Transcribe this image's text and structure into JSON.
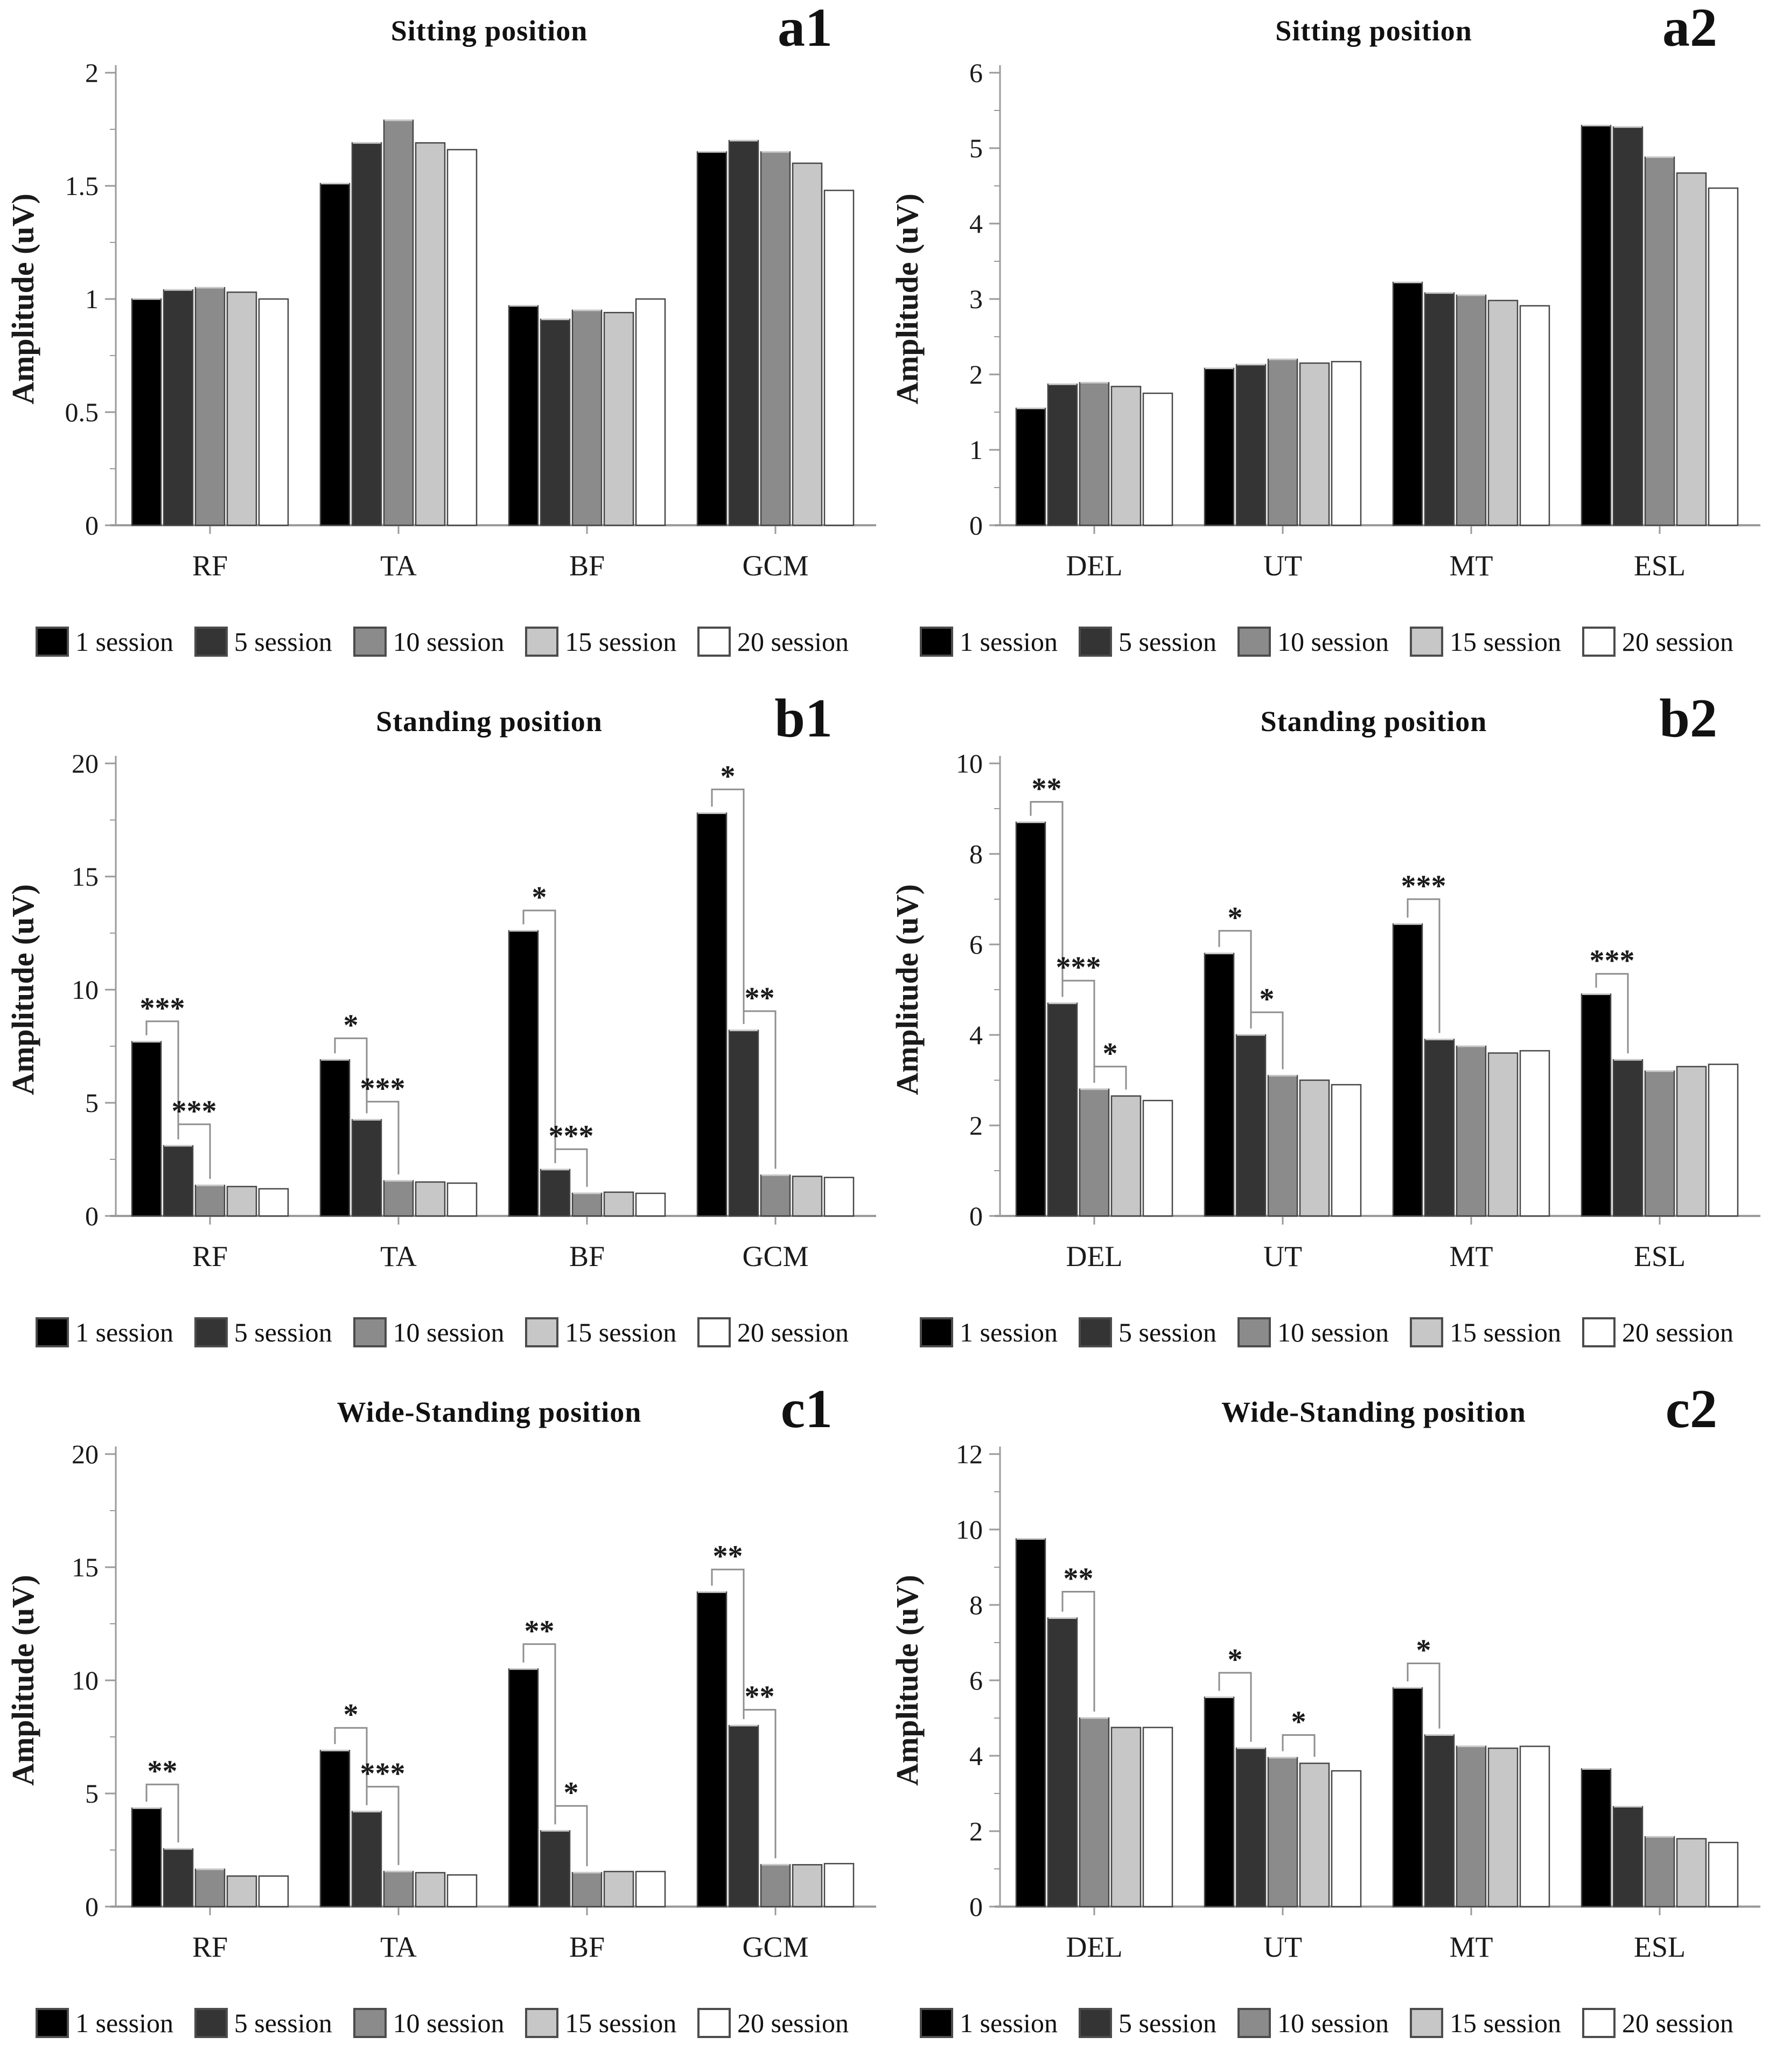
{
  "figure": {
    "y_axis_label": "Amplitude (uV)",
    "legend": [
      "1 session",
      "5 session",
      "10 session",
      "15 session",
      "20 session"
    ],
    "series_colors": [
      "#000000",
      "#343434",
      "#8b8b8b",
      "#c7c7c7",
      "#ffffff"
    ],
    "axis_color": "#9a9a9a",
    "bar_border_color": "#474747",
    "bracket_color": "#8f8f8f"
  },
  "chart_data": [
    {
      "type": "bar",
      "panel_label": "a1",
      "title": "Sitting position",
      "xlabel": "",
      "ylabel": "Amplitude (uV)",
      "categories": [
        "RF",
        "TA",
        "BF",
        "GCM"
      ],
      "ylim": [
        0,
        2
      ],
      "yticks": [
        0,
        0.5,
        1,
        1.5,
        2
      ],
      "grid": false,
      "legend_position": "bottom",
      "series": [
        {
          "name": "1 session",
          "values": [
            1.0,
            1.51,
            0.97,
            1.65
          ]
        },
        {
          "name": "5 session",
          "values": [
            1.04,
            1.69,
            0.91,
            1.7
          ]
        },
        {
          "name": "10 session",
          "values": [
            1.05,
            1.79,
            0.95,
            1.65
          ]
        },
        {
          "name": "15 session",
          "values": [
            1.03,
            1.69,
            0.94,
            1.6
          ]
        },
        {
          "name": "20 session",
          "values": [
            1.0,
            1.66,
            1.0,
            1.48
          ]
        }
      ],
      "significance": []
    },
    {
      "type": "bar",
      "panel_label": "a2",
      "title": "Sitting position",
      "xlabel": "",
      "ylabel": "Amplitude (uV)",
      "categories": [
        "DEL",
        "UT",
        "MT",
        "ESL"
      ],
      "ylim": [
        0,
        6
      ],
      "yticks": [
        0,
        1,
        2,
        3,
        4,
        5,
        6
      ],
      "grid": false,
      "legend_position": "bottom",
      "series": [
        {
          "name": "1 session",
          "values": [
            1.55,
            2.08,
            3.22,
            5.3
          ]
        },
        {
          "name": "5 session",
          "values": [
            1.87,
            2.13,
            3.08,
            5.28
          ]
        },
        {
          "name": "10 session",
          "values": [
            1.89,
            2.2,
            3.05,
            4.88
          ]
        },
        {
          "name": "15 session",
          "values": [
            1.84,
            2.15,
            2.98,
            4.67
          ]
        },
        {
          "name": "20 session",
          "values": [
            1.75,
            2.17,
            2.91,
            4.47
          ]
        }
      ],
      "significance": []
    },
    {
      "type": "bar",
      "panel_label": "b1",
      "title": "Standing position",
      "xlabel": "",
      "ylabel": "Amplitude (uV)",
      "categories": [
        "RF",
        "TA",
        "BF",
        "GCM"
      ],
      "ylim": [
        0,
        20
      ],
      "yticks": [
        0,
        5,
        10,
        15,
        20
      ],
      "grid": false,
      "legend_position": "bottom",
      "series": [
        {
          "name": "1 session",
          "values": [
            7.7,
            6.9,
            12.6,
            17.8
          ]
        },
        {
          "name": "5 session",
          "values": [
            3.1,
            4.25,
            2.05,
            8.2
          ]
        },
        {
          "name": "10 session",
          "values": [
            1.35,
            1.55,
            1.0,
            1.8
          ]
        },
        {
          "name": "15 session",
          "values": [
            1.3,
            1.5,
            1.05,
            1.75
          ]
        },
        {
          "name": "20 session",
          "values": [
            1.2,
            1.45,
            1.0,
            1.7
          ]
        }
      ],
      "significance": [
        {
          "category": "RF",
          "between": [
            "1 session",
            "5 session"
          ],
          "label": "***",
          "height": 8.6
        },
        {
          "category": "RF",
          "between": [
            "5 session",
            "10 session"
          ],
          "label": "***",
          "height": 4.05
        },
        {
          "category": "TA",
          "between": [
            "1 session",
            "5 session"
          ],
          "label": "*",
          "height": 7.85
        },
        {
          "category": "TA",
          "between": [
            "5 session",
            "10 session"
          ],
          "label": "***",
          "height": 5.05
        },
        {
          "category": "BF",
          "between": [
            "1 session",
            "5 session"
          ],
          "label": "*",
          "height": 13.5
        },
        {
          "category": "BF",
          "between": [
            "5 session",
            "10 session"
          ],
          "label": "***",
          "height": 2.95
        },
        {
          "category": "GCM",
          "between": [
            "1 session",
            "5 session"
          ],
          "label": "*",
          "height": 18.85
        },
        {
          "category": "GCM",
          "between": [
            "5 session",
            "10 session"
          ],
          "label": "**",
          "height": 9.05
        }
      ]
    },
    {
      "type": "bar",
      "panel_label": "b2",
      "title": "Standing position",
      "xlabel": "",
      "ylabel": "Amplitude (uV)",
      "categories": [
        "DEL",
        "UT",
        "MT",
        "ESL"
      ],
      "ylim": [
        0,
        10
      ],
      "yticks": [
        0,
        2,
        4,
        6,
        8,
        10
      ],
      "grid": false,
      "legend_position": "bottom",
      "series": [
        {
          "name": "1 session",
          "values": [
            8.7,
            5.8,
            6.45,
            4.9
          ]
        },
        {
          "name": "5 session",
          "values": [
            4.7,
            4.0,
            3.9,
            3.45
          ]
        },
        {
          "name": "10 session",
          "values": [
            2.8,
            3.1,
            3.75,
            3.2
          ]
        },
        {
          "name": "15 session",
          "values": [
            2.65,
            3.0,
            3.6,
            3.3
          ]
        },
        {
          "name": "20 session",
          "values": [
            2.55,
            2.9,
            3.65,
            3.35
          ]
        }
      ],
      "significance": [
        {
          "category": "DEL",
          "between": [
            "1 session",
            "5 session"
          ],
          "label": "**",
          "height": 9.15
        },
        {
          "category": "DEL",
          "between": [
            "5 session",
            "10 session"
          ],
          "label": "***",
          "height": 5.2
        },
        {
          "category": "DEL",
          "between": [
            "10 session",
            "15 session"
          ],
          "label": "*",
          "height": 3.3
        },
        {
          "category": "UT",
          "between": [
            "1 session",
            "5 session"
          ],
          "label": "*",
          "height": 6.3
        },
        {
          "category": "UT",
          "between": [
            "5 session",
            "10 session"
          ],
          "label": "*",
          "height": 4.5
        },
        {
          "category": "MT",
          "between": [
            "1 session",
            "5 session"
          ],
          "label": "***",
          "height": 7.0
        },
        {
          "category": "ESL",
          "between": [
            "1 session",
            "5 session"
          ],
          "label": "***",
          "height": 5.35
        }
      ]
    },
    {
      "type": "bar",
      "panel_label": "c1",
      "title": "Wide-Standing position",
      "xlabel": "",
      "ylabel": "Amplitude (uV)",
      "categories": [
        "RF",
        "TA",
        "BF",
        "GCM"
      ],
      "ylim": [
        0,
        20
      ],
      "yticks": [
        0,
        5,
        10,
        15,
        20
      ],
      "grid": false,
      "legend_position": "bottom",
      "series": [
        {
          "name": "1 session",
          "values": [
            4.35,
            6.9,
            10.5,
            13.9
          ]
        },
        {
          "name": "5 session",
          "values": [
            2.55,
            4.2,
            3.35,
            8.0
          ]
        },
        {
          "name": "10 session",
          "values": [
            1.65,
            1.55,
            1.5,
            1.85
          ]
        },
        {
          "name": "15 session",
          "values": [
            1.35,
            1.5,
            1.55,
            1.85
          ]
        },
        {
          "name": "20 session",
          "values": [
            1.35,
            1.4,
            1.55,
            1.9
          ]
        }
      ],
      "significance": [
        {
          "category": "RF",
          "between": [
            "1 session",
            "5 session"
          ],
          "label": "**",
          "height": 5.4
        },
        {
          "category": "TA",
          "between": [
            "1 session",
            "5 session"
          ],
          "label": "*",
          "height": 7.9
        },
        {
          "category": "TA",
          "between": [
            "5 session",
            "10 session"
          ],
          "label": "***",
          "height": 5.3
        },
        {
          "category": "BF",
          "between": [
            "1 session",
            "5 session"
          ],
          "label": "**",
          "height": 11.6
        },
        {
          "category": "BF",
          "between": [
            "5 session",
            "10 session"
          ],
          "label": "*",
          "height": 4.45
        },
        {
          "category": "GCM",
          "between": [
            "1 session",
            "5 session"
          ],
          "label": "**",
          "height": 14.9
        },
        {
          "category": "GCM",
          "between": [
            "5 session",
            "10 session"
          ],
          "label": "**",
          "height": 8.7
        }
      ]
    },
    {
      "type": "bar",
      "panel_label": "c2",
      "title": "Wide-Standing position",
      "xlabel": "",
      "ylabel": "Amplitude (uV)",
      "categories": [
        "DEL",
        "UT",
        "MT",
        "ESL"
      ],
      "ylim": [
        0,
        12
      ],
      "yticks": [
        0,
        2,
        4,
        6,
        8,
        10,
        12
      ],
      "grid": false,
      "legend_position": "bottom",
      "series": [
        {
          "name": "1 session",
          "values": [
            9.75,
            5.55,
            5.8,
            3.65
          ]
        },
        {
          "name": "5 session",
          "values": [
            7.65,
            4.2,
            4.55,
            2.65
          ]
        },
        {
          "name": "10 session",
          "values": [
            5.0,
            3.95,
            4.25,
            1.85
          ]
        },
        {
          "name": "15 session",
          "values": [
            4.75,
            3.8,
            4.2,
            1.8
          ]
        },
        {
          "name": "20 session",
          "values": [
            4.75,
            3.6,
            4.25,
            1.7
          ]
        }
      ],
      "significance": [
        {
          "category": "DEL",
          "between": [
            "5 session",
            "10 session"
          ],
          "label": "**",
          "height": 8.35
        },
        {
          "category": "UT",
          "between": [
            "1 session",
            "5 session"
          ],
          "label": "*",
          "height": 6.2
        },
        {
          "category": "UT",
          "between": [
            "10 session",
            "15 session"
          ],
          "label": "*",
          "height": 4.55
        },
        {
          "category": "MT",
          "between": [
            "1 session",
            "5 session"
          ],
          "label": "*",
          "height": 6.45
        }
      ]
    }
  ]
}
